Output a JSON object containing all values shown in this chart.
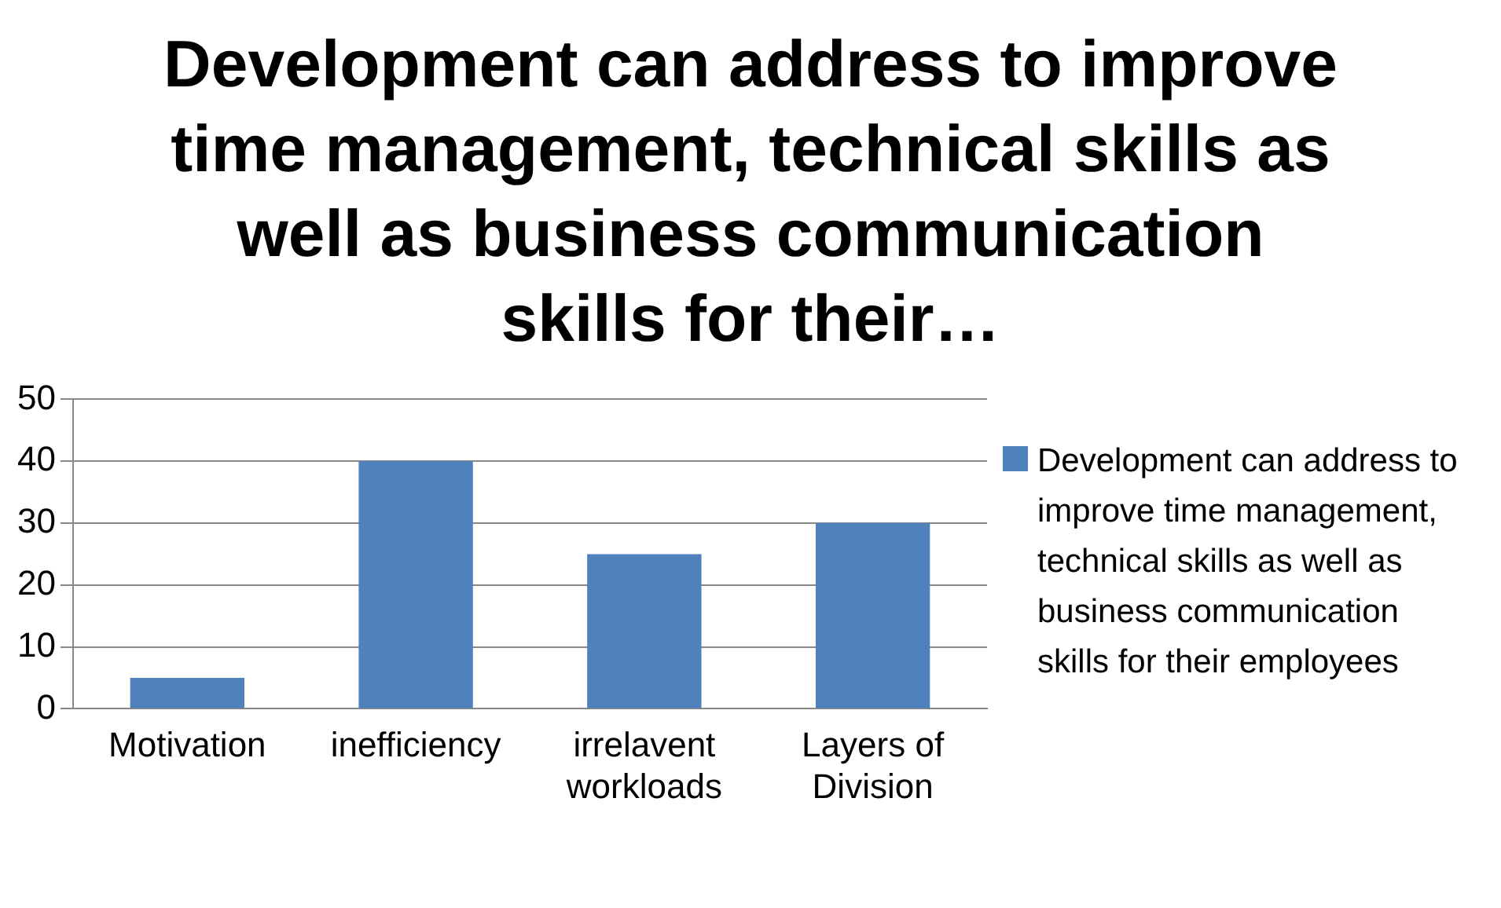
{
  "chart_data": {
    "type": "bar",
    "title": "Development can address to improve time management, technical skills as well as business communication skills for their…",
    "categories": [
      "Motivation",
      "inefficiency",
      "irrelavent workloads",
      "Layers of Division"
    ],
    "series": [
      {
        "name": "Development can address to improve time management, technical skills as well as business communication skills for their employees",
        "color": "#4f81bd",
        "values": [
          5,
          40,
          25,
          30
        ]
      }
    ],
    "ylim": [
      0,
      50
    ],
    "yticks": [
      0,
      10,
      20,
      30,
      40,
      50
    ],
    "grid": "y",
    "legend": "right"
  }
}
